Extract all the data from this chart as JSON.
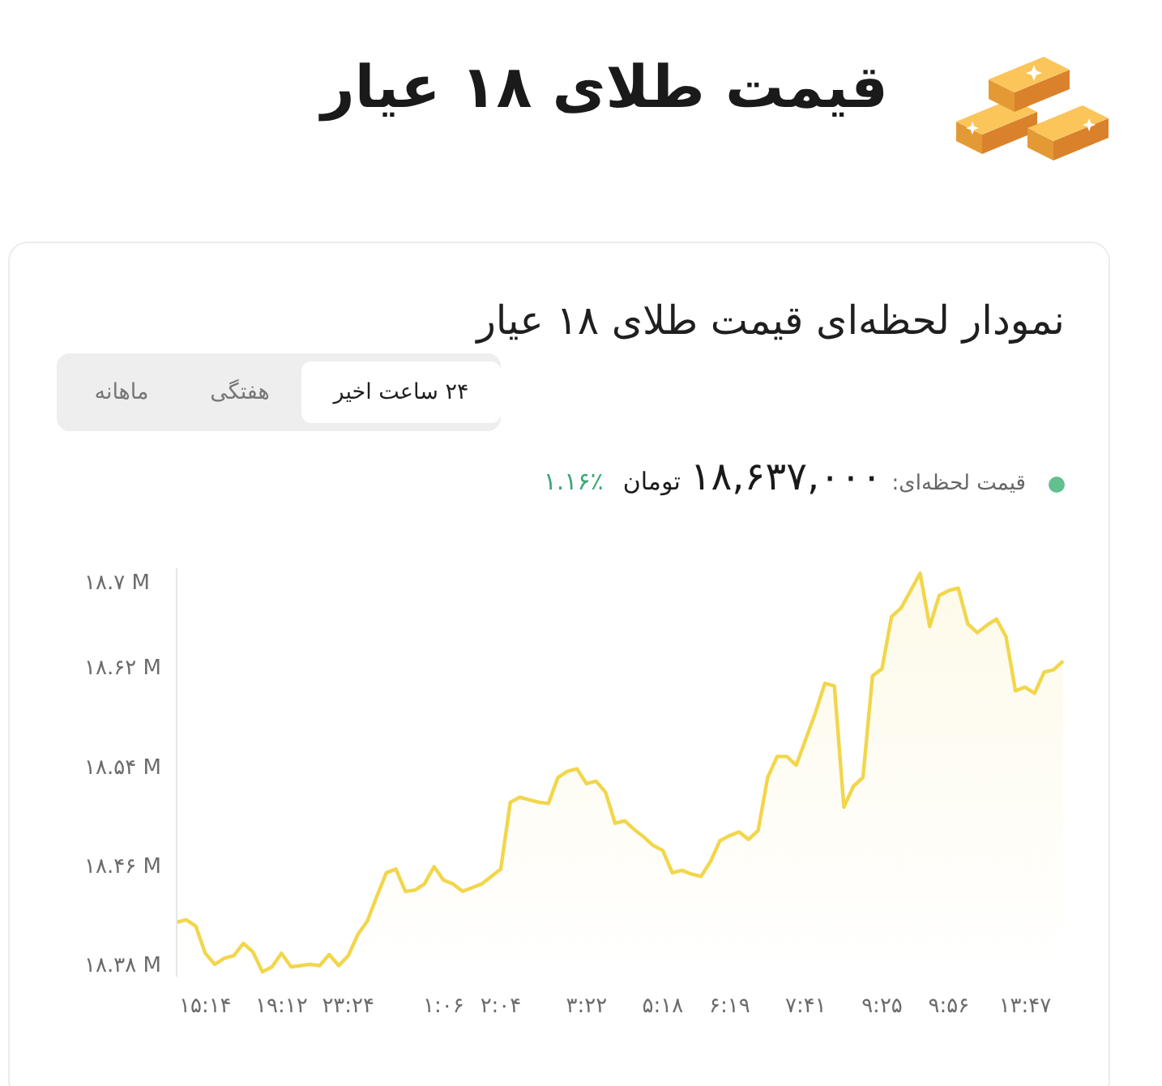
{
  "chart_data": {
    "type": "area",
    "title": "قیمت طلای ۱۸ عیار",
    "subtitle": "نمودار لحظه‌ای قیمت طلای ۱۸ عیار",
    "annotations": [
      "۲۴ ساعت اخیر",
      "هفتگی",
      "ماهانه",
      "قیمت لحظه‌ای:",
      "۱۸,۶۳۷,۰۰۰",
      "تومان",
      "۱.۱۶٪"
    ],
    "categories": [
      null,
      null,
      null,
      "۱۵:۱۴",
      null,
      null,
      null,
      null,
      null,
      null,
      null,
      "۱۹:۱۲",
      null,
      null,
      null,
      null,
      null,
      null,
      "۲۳:۲۴",
      null,
      null,
      null,
      null,
      null,
      null,
      null,
      null,
      null,
      "۱:۰۶",
      null,
      null,
      null,
      null,
      null,
      "۲:۰۴",
      null,
      null,
      null,
      null,
      null,
      null,
      null,
      null,
      "۳:۲۲",
      null,
      null,
      null,
      null,
      null,
      null,
      null,
      "۵:۱۸",
      null,
      null,
      null,
      null,
      null,
      null,
      "۶:۱۹",
      null,
      null,
      null,
      null,
      null,
      null,
      null,
      "۷:۴۱",
      null,
      null,
      null,
      null,
      null,
      null,
      null,
      "۹:۲۵",
      null,
      null,
      null,
      null,
      null,
      null,
      "۹:۵۶",
      null,
      null,
      null,
      null,
      null,
      null,
      null,
      "۱۳:۴۷",
      null,
      null,
      null,
      null
    ],
    "values": [
      18.414,
      18.416,
      18.411,
      18.389,
      18.38,
      18.385,
      18.387,
      18.397,
      18.39,
      18.374,
      18.378,
      18.389,
      18.378,
      18.379,
      18.38,
      18.379,
      18.388,
      18.379,
      18.387,
      18.404,
      18.415,
      18.435,
      18.454,
      18.457,
      18.439,
      18.44,
      18.445,
      18.459,
      18.448,
      18.445,
      18.439,
      18.442,
      18.445,
      18.451,
      18.457,
      18.511,
      18.515,
      18.513,
      18.511,
      18.51,
      18.531,
      18.536,
      18.538,
      18.526,
      18.528,
      18.519,
      18.494,
      18.496,
      18.489,
      18.483,
      18.476,
      18.472,
      18.454,
      18.456,
      18.453,
      18.451,
      18.463,
      18.48,
      18.484,
      18.487,
      18.481,
      18.488,
      18.531,
      18.548,
      18.548,
      18.541,
      18.562,
      18.583,
      18.607,
      18.605,
      18.507,
      18.524,
      18.531,
      18.613,
      18.619,
      18.661,
      18.668,
      18.682,
      18.696,
      18.653,
      18.678,
      18.682,
      18.684,
      18.655,
      18.648,
      18.654,
      18.659,
      18.645,
      18.601,
      18.604,
      18.599,
      18.616,
      18.618,
      18.625
    ],
    "color": "#f2d64b",
    "ylim": [
      18.37,
      18.7
    ],
    "yticks": [
      {
        "value": 18.38,
        "label": "۱۸.۳۸ M"
      },
      {
        "value": 18.46,
        "label": "۱۸.۴۶ M"
      },
      {
        "value": 18.54,
        "label": "۱۸.۵۴ M"
      },
      {
        "value": 18.62,
        "label": "۱۸.۶۲ M"
      },
      {
        "value": 18.689,
        "label": "۱۸.۷ M"
      }
    ]
  }
}
